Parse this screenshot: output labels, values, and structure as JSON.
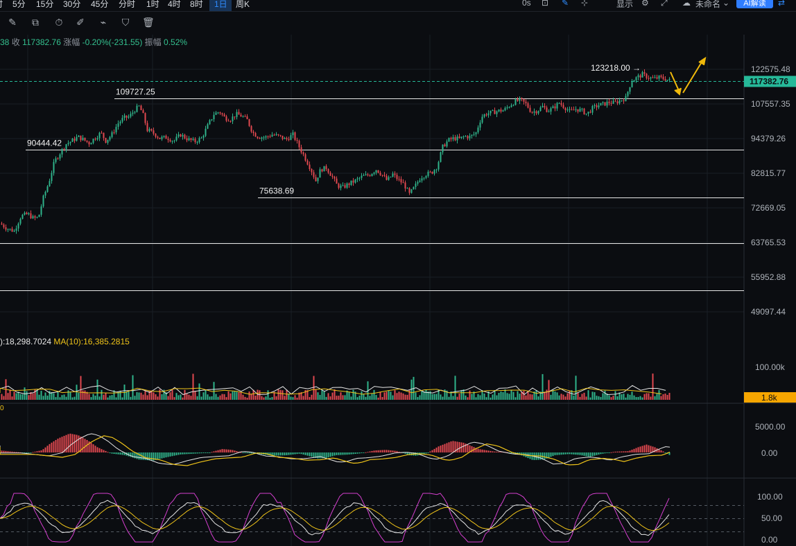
{
  "timeframes": [
    "5分",
    "15分",
    "30分",
    "45分",
    "分时",
    "1时",
    "4时",
    "8时",
    "1日",
    "周K"
  ],
  "active_timeframe": "1日",
  "top_right": {
    "s": "0s",
    "display": "显示",
    "unnamed": "未命名",
    "ai_button": "AI解读"
  },
  "stats": {
    "close_label": "收",
    "close": "117382.76",
    "change_label": "涨幅",
    "change": "-0.20%(-231.55)",
    "amplitude_label": "振幅",
    "amplitude": "0.52%",
    "lead": "38"
  },
  "volume_label": {
    "ma5_text": "):18,298.7024",
    "ma10_text": "MA(10):16,385.2815"
  },
  "macd_zero_label": "0",
  "colors": {
    "up": "#2fb38a",
    "down": "#e0484f",
    "ma_white": "#e6e6e6",
    "ma_yellow": "#f0c419",
    "kdj_magenta": "#d63fd0",
    "last_price_bg": "#26b999",
    "volume_badge_bg": "#f7a600",
    "accent": "#2f8cff"
  },
  "chart_data": {
    "type": "candlestick",
    "price_axis": {
      "ticks": [
        "122575.48",
        "107557.35",
        "94379.26",
        "82815.77",
        "72669.05",
        "63765.53",
        "55952.88",
        "49097.44"
      ],
      "last_price": "117382.76"
    },
    "levels": [
      {
        "value": 109727.25,
        "label": "109727.25"
      },
      {
        "value": 90444.42,
        "label": "90444.42"
      },
      {
        "value": 75638.69,
        "label": "75638.69"
      },
      {
        "value": 63550,
        "label": ""
      },
      {
        "value": 53200,
        "label": ""
      }
    ],
    "high_marker": {
      "value": 123218.0,
      "label": "123218.00 →"
    },
    "close_path": [
      [
        0,
        68500
      ],
      [
        10,
        67200
      ],
      [
        20,
        66600
      ],
      [
        30,
        70500
      ],
      [
        40,
        71000
      ],
      [
        48,
        69800
      ],
      [
        55,
        70100
      ],
      [
        62,
        75500
      ],
      [
        70,
        80000
      ],
      [
        78,
        86500
      ],
      [
        85,
        89000
      ],
      [
        95,
        92500
      ],
      [
        103,
        93500
      ],
      [
        112,
        95000
      ],
      [
        120,
        94000
      ],
      [
        128,
        92800
      ],
      [
        136,
        94500
      ],
      [
        145,
        96500
      ],
      [
        152,
        93600
      ],
      [
        160,
        95500
      ],
      [
        170,
        100000
      ],
      [
        178,
        102000
      ],
      [
        186,
        102500
      ],
      [
        195,
        105500
      ],
      [
        200,
        106500
      ],
      [
        205,
        104000
      ],
      [
        212,
        97500
      ],
      [
        220,
        96500
      ],
      [
        230,
        94500
      ],
      [
        240,
        94800
      ],
      [
        250,
        93500
      ],
      [
        260,
        95800
      ],
      [
        270,
        94200
      ],
      [
        280,
        93300
      ],
      [
        290,
        94500
      ],
      [
        300,
        99500
      ],
      [
        308,
        103500
      ],
      [
        316,
        104500
      ],
      [
        324,
        102000
      ],
      [
        332,
        101500
      ],
      [
        340,
        103500
      ],
      [
        348,
        102800
      ],
      [
        356,
        101200
      ],
      [
        364,
        96500
      ],
      [
        372,
        95000
      ],
      [
        382,
        94800
      ],
      [
        392,
        95800
      ],
      [
        402,
        95200
      ],
      [
        412,
        94000
      ],
      [
        422,
        95800
      ],
      [
        432,
        91000
      ],
      [
        440,
        87500
      ],
      [
        448,
        84000
      ],
      [
        455,
        80500
      ],
      [
        462,
        84000
      ],
      [
        470,
        84500
      ],
      [
        478,
        82000
      ],
      [
        486,
        79000
      ],
      [
        494,
        78500
      ],
      [
        502,
        79500
      ],
      [
        512,
        80500
      ],
      [
        522,
        81800
      ],
      [
        532,
        82300
      ],
      [
        542,
        84000
      ],
      [
        550,
        82500
      ],
      [
        558,
        80500
      ],
      [
        566,
        82500
      ],
      [
        574,
        80800
      ],
      [
        582,
        79500
      ],
      [
        590,
        76500
      ],
      [
        598,
        78800
      ],
      [
        606,
        81500
      ],
      [
        614,
        82500
      ],
      [
        622,
        83000
      ],
      [
        630,
        85000
      ],
      [
        638,
        91500
      ],
      [
        646,
        93800
      ],
      [
        654,
        94500
      ],
      [
        662,
        94300
      ],
      [
        670,
        95200
      ],
      [
        678,
        95000
      ],
      [
        686,
        96500
      ],
      [
        694,
        102500
      ],
      [
        702,
        103800
      ],
      [
        710,
        104200
      ],
      [
        718,
        104800
      ],
      [
        726,
        105000
      ],
      [
        734,
        106800
      ],
      [
        742,
        108500
      ],
      [
        750,
        109200
      ],
      [
        758,
        107500
      ],
      [
        766,
        104300
      ],
      [
        774,
        104800
      ],
      [
        782,
        106500
      ],
      [
        790,
        104800
      ],
      [
        798,
        106000
      ],
      [
        806,
        108000
      ],
      [
        814,
        106200
      ],
      [
        822,
        104400
      ],
      [
        830,
        105500
      ],
      [
        838,
        105000
      ],
      [
        846,
        103500
      ],
      [
        854,
        105800
      ],
      [
        862,
        107000
      ],
      [
        870,
        107500
      ],
      [
        878,
        108200
      ],
      [
        886,
        108000
      ],
      [
        894,
        109000
      ],
      [
        902,
        110000
      ],
      [
        910,
        117200
      ],
      [
        918,
        118800
      ],
      [
        926,
        120200
      ],
      [
        934,
        119000
      ],
      [
        942,
        118200
      ],
      [
        950,
        118800
      ],
      [
        958,
        118300
      ],
      [
        966,
        117380
      ]
    ],
    "volume_axis": {
      "ticks": [
        "100.00k"
      ],
      "badge": "1.8k"
    },
    "macd_axis": {
      "ticks": [
        "5000.00",
        "0.00"
      ]
    },
    "macd_hist": [
      [
        0,
        380
      ],
      [
        40,
        -120
      ],
      [
        60,
        420
      ],
      [
        72,
        1700
      ],
      [
        84,
        2700
      ],
      [
        100,
        3600
      ],
      [
        112,
        3300
      ],
      [
        126,
        2300
      ],
      [
        140,
        1000
      ],
      [
        160,
        -200
      ],
      [
        180,
        -520
      ],
      [
        200,
        -1350
      ],
      [
        220,
        -1550
      ],
      [
        240,
        -900
      ],
      [
        260,
        -380
      ],
      [
        280,
        -220
      ],
      [
        300,
        -80
      ],
      [
        320,
        650
      ],
      [
        334,
        500
      ],
      [
        352,
        -120
      ],
      [
        372,
        -260
      ],
      [
        392,
        -620
      ],
      [
        412,
        -540
      ],
      [
        432,
        -220
      ],
      [
        448,
        -780
      ],
      [
        458,
        -1150
      ],
      [
        470,
        -1050
      ],
      [
        484,
        -520
      ],
      [
        500,
        -420
      ],
      [
        520,
        -160
      ],
      [
        540,
        380
      ],
      [
        556,
        500
      ],
      [
        572,
        280
      ],
      [
        590,
        -520
      ],
      [
        600,
        -640
      ],
      [
        616,
        -120
      ],
      [
        632,
        1150
      ],
      [
        652,
        2200
      ],
      [
        668,
        1850
      ],
      [
        690,
        650
      ],
      [
        712,
        180
      ],
      [
        730,
        90
      ],
      [
        750,
        -460
      ],
      [
        768,
        -1450
      ],
      [
        784,
        -1350
      ],
      [
        800,
        -520
      ],
      [
        820,
        -300
      ],
      [
        836,
        -480
      ],
      [
        850,
        -850
      ],
      [
        866,
        -300
      ],
      [
        886,
        150
      ],
      [
        906,
        250
      ],
      [
        920,
        1000
      ],
      [
        932,
        1500
      ],
      [
        944,
        1000
      ],
      [
        956,
        200
      ],
      [
        966,
        -550
      ]
    ],
    "kdj_axis": {
      "ticks": [
        "100.00",
        "50.00",
        "0.00"
      ],
      "lines": [
        80,
        50,
        20
      ]
    }
  }
}
